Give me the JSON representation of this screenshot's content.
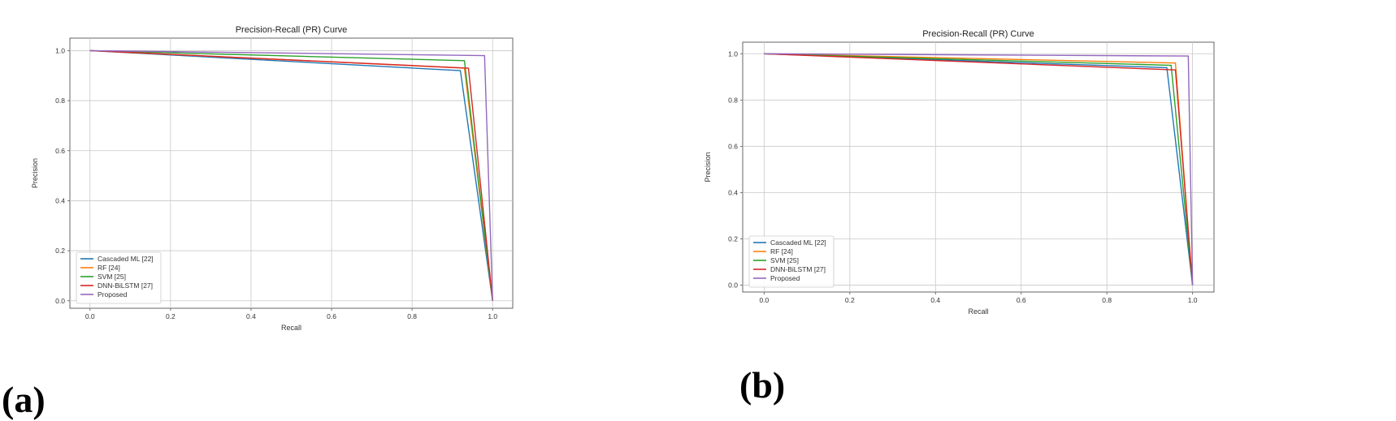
{
  "panel_labels": {
    "a": "(a)",
    "b": "(b)"
  },
  "chart_data": [
    {
      "type": "line",
      "title": "Precision-Recall (PR) Curve",
      "xlabel": "Recall",
      "ylabel": "Precision",
      "xlim": [
        -0.05,
        1.05
      ],
      "ylim": [
        -0.03,
        1.05
      ],
      "xticks": [
        0.0,
        0.2,
        0.4,
        0.6,
        0.8,
        1.0
      ],
      "yticks": [
        0.0,
        0.2,
        0.4,
        0.6,
        0.8,
        1.0
      ],
      "xtick_labels": [
        "0.0",
        "0.2",
        "0.4",
        "0.6",
        "0.8",
        "1.0"
      ],
      "ytick_labels": [
        "0.0",
        "0.2",
        "0.4",
        "0.6",
        "0.8",
        "1.0"
      ],
      "grid": true,
      "legend_position": "lower-left",
      "series": [
        {
          "name": "Cascaded ML [22]",
          "color": "#1f77b4",
          "x": [
            0.0,
            0.92,
            1.0
          ],
          "y": [
            1.0,
            0.92,
            0.0
          ]
        },
        {
          "name": "RF [24]",
          "color": "#ff7f0e",
          "x": [
            0.0,
            0.93,
            1.0
          ],
          "y": [
            1.0,
            0.93,
            0.0
          ]
        },
        {
          "name": "SVM [25]",
          "color": "#2ca02c",
          "x": [
            0.0,
            0.93,
            1.0
          ],
          "y": [
            1.0,
            0.96,
            0.0
          ]
        },
        {
          "name": "DNN-BiLSTM [27]",
          "color": "#d62728",
          "x": [
            0.0,
            0.94,
            1.0
          ],
          "y": [
            1.0,
            0.93,
            0.0
          ]
        },
        {
          "name": "Proposed",
          "color": "#9467bd",
          "x": [
            0.0,
            0.98,
            1.0
          ],
          "y": [
            1.0,
            0.98,
            0.0
          ]
        }
      ]
    },
    {
      "type": "line",
      "title": "Precision-Recall (PR) Curve",
      "xlabel": "Recall",
      "ylabel": "Precision",
      "xlim": [
        -0.05,
        1.05
      ],
      "ylim": [
        -0.03,
        1.05
      ],
      "xticks": [
        0.0,
        0.2,
        0.4,
        0.6,
        0.8,
        1.0
      ],
      "yticks": [
        0.0,
        0.2,
        0.4,
        0.6,
        0.8,
        1.0
      ],
      "xtick_labels": [
        "0.0",
        "0.2",
        "0.4",
        "0.6",
        "0.8",
        "1.0"
      ],
      "ytick_labels": [
        "0.0",
        "0.2",
        "0.4",
        "0.6",
        "0.8",
        "1.0"
      ],
      "grid": true,
      "legend_position": "lower-left",
      "series": [
        {
          "name": "Cascaded ML [22]",
          "color": "#1f77b4",
          "x": [
            0.0,
            0.94,
            1.0
          ],
          "y": [
            1.0,
            0.94,
            0.0
          ]
        },
        {
          "name": "RF [24]",
          "color": "#ff7f0e",
          "x": [
            0.0,
            0.96,
            1.0
          ],
          "y": [
            1.0,
            0.96,
            0.0
          ]
        },
        {
          "name": "SVM [25]",
          "color": "#2ca02c",
          "x": [
            0.0,
            0.95,
            1.0
          ],
          "y": [
            1.0,
            0.95,
            0.0
          ]
        },
        {
          "name": "DNN-BiLSTM [27]",
          "color": "#d62728",
          "x": [
            0.0,
            0.96,
            1.0
          ],
          "y": [
            1.0,
            0.93,
            0.0
          ]
        },
        {
          "name": "Proposed",
          "color": "#9467bd",
          "x": [
            0.0,
            0.99,
            1.0
          ],
          "y": [
            1.0,
            0.99,
            0.0
          ]
        }
      ]
    }
  ]
}
